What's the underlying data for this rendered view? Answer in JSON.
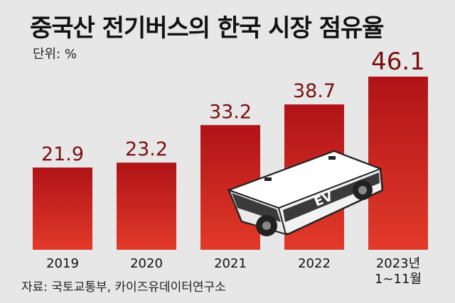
{
  "title": "중국산 전기버스의 한국 시장 점유율",
  "unit_label": "단위: %",
  "source": "자료: 국토교통부, 카이즈유데이터연구소",
  "colors": {
    "bar_fill_top": "#b01317",
    "bar_fill_bottom": "#e23a2a",
    "value_label": "#7a1010",
    "background": "#e7e7e7"
  },
  "bus_illustration": {
    "icon": "ev-bus-illustration",
    "text": "EV"
  },
  "chart_data": {
    "type": "bar",
    "title": "중국산 전기버스의 한국 시장 점유율",
    "ylabel": "단위: %",
    "categories": [
      "2019",
      "2020",
      "2021",
      "2022",
      "2023년\n1~11월"
    ],
    "values": [
      21.9,
      23.2,
      33.2,
      38.7,
      46.1
    ],
    "value_labels": [
      "21.9",
      "23.2",
      "33.2",
      "38.7",
      "46.1"
    ],
    "ylim": [
      0,
      46.1
    ],
    "grid": false,
    "legend": "none"
  }
}
